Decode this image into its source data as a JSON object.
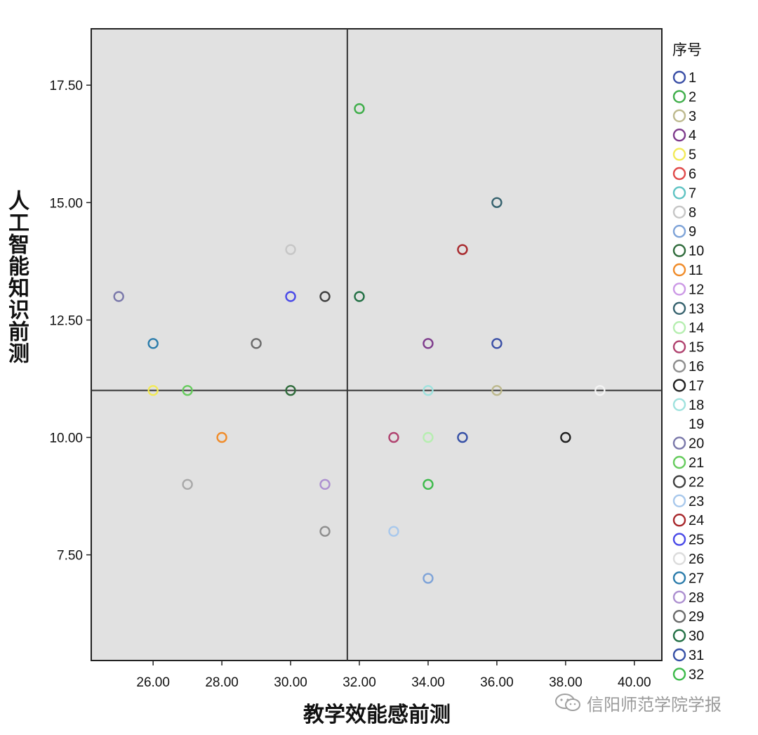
{
  "chart_data": {
    "type": "scatter",
    "xlabel": "教学效能感前测",
    "ylabel": "人工智能知识前测",
    "xlim": [
      24.2,
      40.8
    ],
    "ylim": [
      5.25,
      18.7
    ],
    "x_ticks": [
      "26.00",
      "28.00",
      "30.00",
      "32.00",
      "34.00",
      "36.00",
      "38.00",
      "40.00"
    ],
    "x_tick_values": [
      26,
      28,
      30,
      32,
      34,
      36,
      38,
      40
    ],
    "y_ticks": [
      "17.50",
      "15.00",
      "12.50",
      "10.00",
      "7.50"
    ],
    "y_tick_values": [
      17.5,
      15,
      12.5,
      10,
      7.5
    ],
    "reference_lines": {
      "x": 31.65,
      "y": 11.0
    },
    "grid": false,
    "background": "#e1e1e1",
    "legend": {
      "title": "序号",
      "position": "right",
      "entries": [
        {
          "label": "1",
          "color": "#3a4fa6"
        },
        {
          "label": "2",
          "color": "#3fae4a"
        },
        {
          "label": "3",
          "color": "#bdb98e"
        },
        {
          "label": "4",
          "color": "#7e3b8c"
        },
        {
          "label": "5",
          "color": "#f2ea58"
        },
        {
          "label": "6",
          "color": "#e04a4a"
        },
        {
          "label": "7",
          "color": "#5fc3c3"
        },
        {
          "label": "8",
          "color": "#c6c6c6"
        },
        {
          "label": "9",
          "color": "#7ea3d8"
        },
        {
          "label": "10",
          "color": "#2f6b3b"
        },
        {
          "label": "11",
          "color": "#f08c2a"
        },
        {
          "label": "12",
          "color": "#cc99e6"
        },
        {
          "label": "13",
          "color": "#36626e"
        },
        {
          "label": "14",
          "color": "#b6eeb0"
        },
        {
          "label": "15",
          "color": "#b0426f"
        },
        {
          "label": "16",
          "color": "#8e8e8e"
        },
        {
          "label": "17",
          "color": "#202020"
        },
        {
          "label": "18",
          "color": "#9fe2de"
        },
        {
          "label": "19",
          "color": ""
        },
        {
          "label": "20",
          "color": "#7a78aa"
        },
        {
          "label": "21",
          "color": "#67cc5e"
        },
        {
          "label": "22",
          "color": "#404040"
        },
        {
          "label": "23",
          "color": "#a8c8ec"
        },
        {
          "label": "24",
          "color": "#a8282c"
        },
        {
          "label": "25",
          "color": "#4a4ae8"
        },
        {
          "label": "26",
          "color": "#dcdcdc"
        },
        {
          "label": "27",
          "color": "#2b7cab"
        },
        {
          "label": "28",
          "color": "#ac8fd0"
        },
        {
          "label": "29",
          "color": "#6a6a6a"
        },
        {
          "label": "30",
          "color": "#237045"
        },
        {
          "label": "31",
          "color": "#3650a6"
        },
        {
          "label": "32",
          "color": "#3cba4a"
        }
      ]
    },
    "points": [
      {
        "x": 32,
        "y": 17,
        "color": "#3fae4a"
      },
      {
        "x": 36,
        "y": 15,
        "color": "#36626e"
      },
      {
        "x": 30,
        "y": 14,
        "color": "#c6c6c6"
      },
      {
        "x": 35,
        "y": 14,
        "color": "#a8282c"
      },
      {
        "x": 25,
        "y": 13,
        "color": "#7a78aa"
      },
      {
        "x": 30,
        "y": 13,
        "color": "#4a4ae8"
      },
      {
        "x": 31,
        "y": 13,
        "color": "#404040"
      },
      {
        "x": 32,
        "y": 13,
        "color": "#237045"
      },
      {
        "x": 26,
        "y": 12,
        "color": "#2b7cab"
      },
      {
        "x": 29,
        "y": 12,
        "color": "#6a6a6a"
      },
      {
        "x": 34,
        "y": 12,
        "color": "#7e3b8c"
      },
      {
        "x": 36,
        "y": 12,
        "color": "#3a4fa6"
      },
      {
        "x": 26,
        "y": 11,
        "color": "#f2ea58"
      },
      {
        "x": 27,
        "y": 11,
        "color": "#67cc5e"
      },
      {
        "x": 30,
        "y": 11,
        "color": "#2f6b3b"
      },
      {
        "x": 34,
        "y": 11,
        "color": "#9fe2de"
      },
      {
        "x": 36,
        "y": 11,
        "color": "#bdb98e"
      },
      {
        "x": 39,
        "y": 11,
        "color": "#f4f4f4"
      },
      {
        "x": 28,
        "y": 10,
        "color": "#f08c2a"
      },
      {
        "x": 33,
        "y": 10,
        "color": "#b0426f"
      },
      {
        "x": 34,
        "y": 10,
        "color": "#b6eeb0"
      },
      {
        "x": 35,
        "y": 10,
        "color": "#3650a6"
      },
      {
        "x": 38,
        "y": 10,
        "color": "#202020"
      },
      {
        "x": 27,
        "y": 9,
        "color": "#a8a8a8"
      },
      {
        "x": 31,
        "y": 9,
        "color": "#ac8fd0"
      },
      {
        "x": 34,
        "y": 9,
        "color": "#3cba4a"
      },
      {
        "x": 31,
        "y": 8,
        "color": "#8e8e8e"
      },
      {
        "x": 33,
        "y": 8,
        "color": "#a8c8ec"
      },
      {
        "x": 34,
        "y": 7,
        "color": "#7ea3d8"
      }
    ]
  },
  "watermark": {
    "text": "信阳师范学院学报",
    "icon": "wechat-icon"
  }
}
